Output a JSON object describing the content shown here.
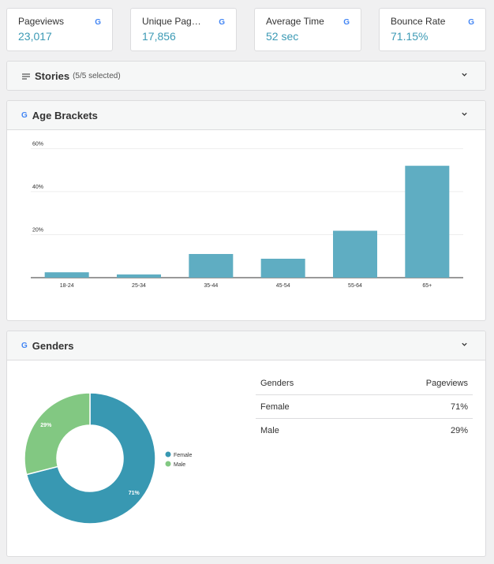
{
  "stats": [
    {
      "label": "Pageviews",
      "value": "23,017"
    },
    {
      "label": "Unique Pageviews",
      "value": "17,856"
    },
    {
      "label": "Average Time",
      "value": "52 sec"
    },
    {
      "label": "Bounce Rate",
      "value": "71.15%"
    }
  ],
  "stories": {
    "title": "Stories",
    "subtitle": "(5/5 selected)"
  },
  "age": {
    "title": "Age Brackets"
  },
  "genders": {
    "title": "Genders",
    "table": {
      "headers": [
        "Genders",
        "Pageviews"
      ],
      "rows": [
        {
          "name": "Female",
          "value": "71%"
        },
        {
          "name": "Male",
          "value": "29%"
        }
      ]
    }
  },
  "colors": {
    "accent": "#3c9ab5",
    "bar": "#5fadc2",
    "female": "#3898b2",
    "male": "#82c882"
  },
  "icons": {
    "google": "google-icon",
    "collapse": "chevron-down-icon",
    "stories": "lines-icon"
  },
  "chart_data": [
    {
      "type": "bar",
      "categories": [
        "18-24",
        "25-34",
        "35-44",
        "45-54",
        "55-64",
        "65+"
      ],
      "values": [
        2.5,
        1.5,
        11,
        8.8,
        21.8,
        52
      ],
      "yticks": [
        "20%",
        "40%",
        "60%"
      ],
      "ylim": [
        0,
        60
      ],
      "grid": true
    },
    {
      "type": "pie",
      "labels": [
        "Female",
        "Male"
      ],
      "values": [
        71,
        29
      ],
      "slice_labels": [
        "71%",
        "29%"
      ],
      "legend": "right"
    }
  ]
}
